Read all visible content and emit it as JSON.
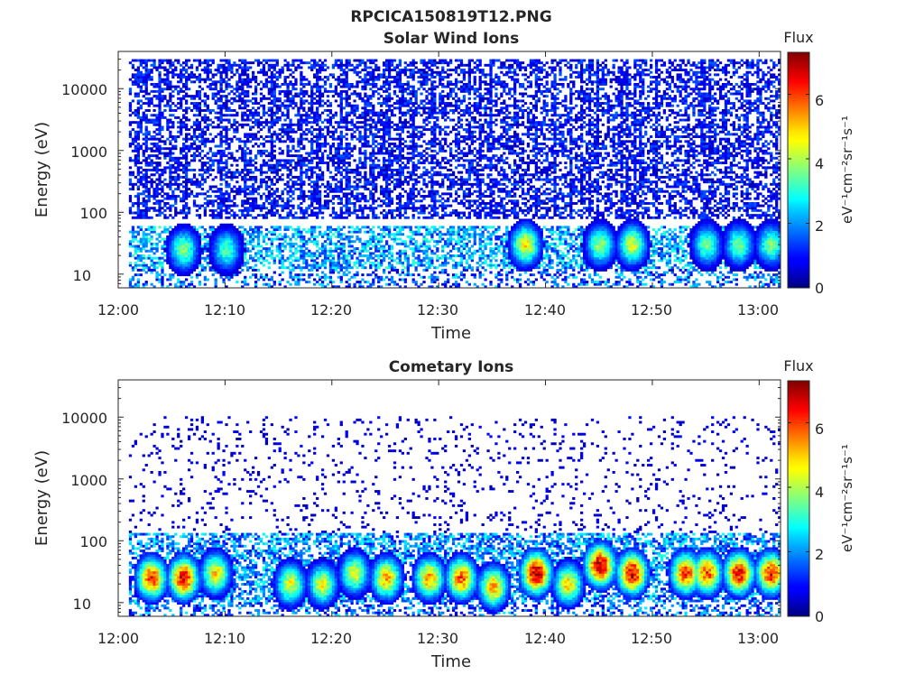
{
  "figure": {
    "suptitle": "RPCICA150819T12.PNG"
  },
  "colors": {
    "colormap": "jet",
    "background": "#ffffff",
    "axis": "#262626"
  },
  "chart_data": [
    {
      "type": "heatmap",
      "title": "Solar Wind Ions",
      "xlabel": "Time",
      "ylabel": "Energy (eV)",
      "yscale": "log",
      "xlim": [
        "12:00",
        "13:02"
      ],
      "ylim": [
        6,
        40000
      ],
      "x_ticks": [
        "12:00",
        "12:10",
        "12:20",
        "12:30",
        "12:40",
        "12:50",
        "13:00"
      ],
      "y_ticks": [
        "10",
        "100",
        "1000",
        "10000"
      ],
      "data_time_range": [
        "12:01",
        "13:02"
      ],
      "colorbar": {
        "label_top": "Flux",
        "unit": "eV⁻¹cm⁻²sr⁻¹s⁻¹",
        "range": [
          0,
          7.3
        ],
        "ticks": [
          "0",
          "2",
          "4",
          "6"
        ]
      },
      "profile": {
        "description_values": "log10 flux per time/energy bin, sparse above 100 eV",
        "background_energy_range": [
          80,
          30000
        ],
        "background_flux": [
          0.3,
          1.6
        ],
        "background_fill_fraction": 0.5,
        "low_energy_band": [
          12,
          60
        ],
        "low_energy_flux": [
          1.0,
          3.2
        ],
        "bursts": [
          {
            "t": "12:06",
            "e": 25,
            "flux": 3.8
          },
          {
            "t": "12:10",
            "e": 25,
            "flux": 3.3
          },
          {
            "t": "12:38",
            "e": 30,
            "flux": 4.6
          },
          {
            "t": "12:45",
            "e": 30,
            "flux": 3.8
          },
          {
            "t": "12:48",
            "e": 30,
            "flux": 4.3
          },
          {
            "t": "12:55",
            "e": 30,
            "flux": 3.5
          },
          {
            "t": "12:58",
            "e": 30,
            "flux": 3.6
          },
          {
            "t": "13:01",
            "e": 30,
            "flux": 3.6
          }
        ]
      }
    },
    {
      "type": "heatmap",
      "title": "Cometary Ions",
      "xlabel": "Time",
      "ylabel": "Energy (eV)",
      "yscale": "log",
      "xlim": [
        "12:00",
        "13:02"
      ],
      "ylim": [
        6,
        40000
      ],
      "x_ticks": [
        "12:00",
        "12:10",
        "12:20",
        "12:30",
        "12:40",
        "12:50",
        "13:00"
      ],
      "y_ticks": [
        "10",
        "100",
        "1000",
        "10000"
      ],
      "data_time_range": [
        "12:01",
        "13:02"
      ],
      "colorbar": {
        "label_top": "Flux",
        "unit": "eV⁻¹cm⁻²sr⁻¹s⁻¹",
        "range": [
          0,
          7.3
        ],
        "ticks": [
          "0",
          "2",
          "4",
          "6"
        ]
      },
      "profile": {
        "description_values": "log10 flux per time/energy bin, intense 10-60 eV blobs",
        "background_energy_range": [
          120,
          10000
        ],
        "background_flux": [
          0.3,
          1.0
        ],
        "background_fill_fraction": 0.08,
        "low_energy_band": [
          10,
          130
        ],
        "low_energy_flux": [
          0.8,
          3.0
        ],
        "bursts": [
          {
            "t": "12:03",
            "e": 25,
            "flux": 6.0
          },
          {
            "t": "12:06",
            "e": 25,
            "flux": 6.5
          },
          {
            "t": "12:09",
            "e": 30,
            "flux": 4.8
          },
          {
            "t": "12:16",
            "e": 20,
            "flux": 4.4
          },
          {
            "t": "12:19",
            "e": 20,
            "flux": 4.4
          },
          {
            "t": "12:22",
            "e": 30,
            "flux": 4.3
          },
          {
            "t": "12:25",
            "e": 25,
            "flux": 5.2
          },
          {
            "t": "12:29",
            "e": 25,
            "flux": 5.3
          },
          {
            "t": "12:32",
            "e": 25,
            "flux": 5.8
          },
          {
            "t": "12:35",
            "e": 18,
            "flux": 5.2
          },
          {
            "t": "12:39",
            "e": 30,
            "flux": 7.0
          },
          {
            "t": "12:42",
            "e": 20,
            "flux": 4.8
          },
          {
            "t": "12:45",
            "e": 40,
            "flux": 7.0
          },
          {
            "t": "12:48",
            "e": 30,
            "flux": 6.8
          },
          {
            "t": "12:53",
            "e": 30,
            "flux": 6.0
          },
          {
            "t": "12:55",
            "e": 30,
            "flux": 5.8
          },
          {
            "t": "12:58",
            "e": 30,
            "flux": 6.5
          },
          {
            "t": "13:01",
            "e": 30,
            "flux": 6.3
          }
        ]
      }
    }
  ]
}
